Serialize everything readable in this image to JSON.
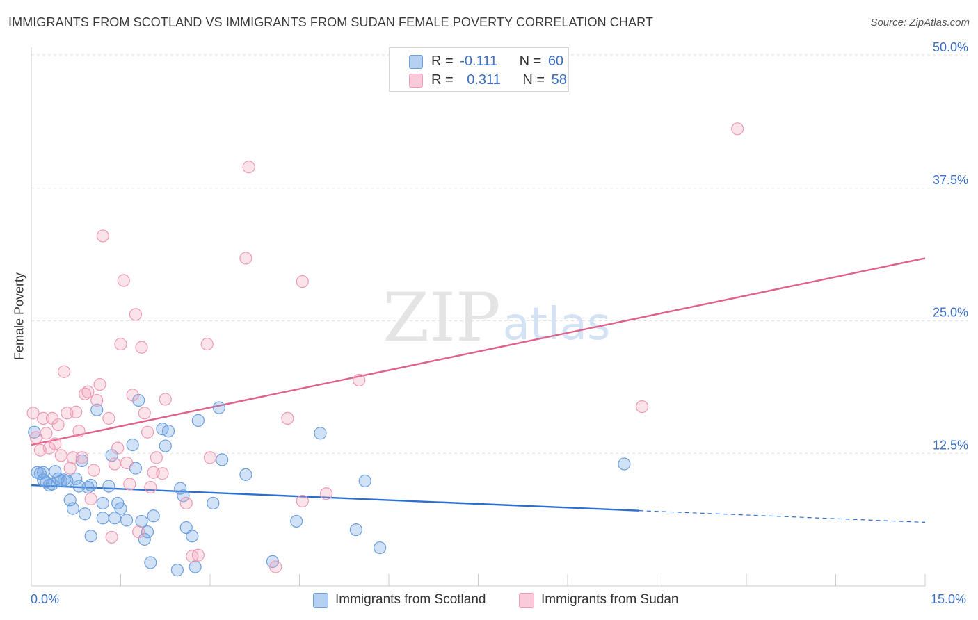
{
  "title": "IMMIGRANTS FROM SCOTLAND VS IMMIGRANTS FROM SUDAN FEMALE POVERTY CORRELATION CHART",
  "source": "Source: ZipAtlas.com",
  "watermark": {
    "zip": "ZIP",
    "atlas": "atlas"
  },
  "colors": {
    "scotland": "#6b9fe0",
    "scotland_line": "#2b6fd1",
    "sudan": "#f09ab5",
    "sudan_line": "#e0608c",
    "axis_text": "#3a6fc4"
  },
  "legend": {
    "scotland": {
      "r_label": "R =",
      "r_value": "-0.111",
      "n_label": "N =",
      "n_value": "60"
    },
    "sudan": {
      "r_label": "R =",
      "r_value": "0.311",
      "n_label": "N =",
      "n_value": "58"
    }
  },
  "bottom_legend": {
    "scotland": "Immigrants from Scotland",
    "sudan": "Immigrants from Sudan"
  },
  "x_axis": {
    "min_label": "0.0%",
    "max_label": "15.0%"
  },
  "chart_data": {
    "type": "scatter",
    "title": "IMMIGRANTS FROM SCOTLAND VS IMMIGRANTS FROM SUDAN FEMALE POVERTY CORRELATION CHART",
    "xlabel": "",
    "ylabel": "Female Poverty",
    "xlim": [
      0,
      15
    ],
    "ylim": [
      0,
      52
    ],
    "y_ticks": [
      12.5,
      25.0,
      37.5,
      50.0
    ],
    "y_tick_labels": [
      "12.5%",
      "25.0%",
      "37.5%",
      "50.0%"
    ],
    "grid": "horizontal dashed",
    "legend_position": "top-center",
    "series": [
      {
        "name": "Immigrants from Scotland",
        "points": [
          [
            0.05,
            14.5
          ],
          [
            0.1,
            10.7
          ],
          [
            0.2,
            10.7
          ],
          [
            0.2,
            10.0
          ],
          [
            0.25,
            9.8
          ],
          [
            0.3,
            9.5
          ],
          [
            0.35,
            9.6
          ],
          [
            0.4,
            10.8
          ],
          [
            0.45,
            10.1
          ],
          [
            0.5,
            9.9
          ],
          [
            0.55,
            10.0
          ],
          [
            0.6,
            9.9
          ],
          [
            0.65,
            8.1
          ],
          [
            0.7,
            7.3
          ],
          [
            0.75,
            10.1
          ],
          [
            0.8,
            9.4
          ],
          [
            0.85,
            11.8
          ],
          [
            0.9,
            6.8
          ],
          [
            0.95,
            9.3
          ],
          [
            1.0,
            4.7
          ],
          [
            1.1,
            16.6
          ],
          [
            1.2,
            7.8
          ],
          [
            1.2,
            6.4
          ],
          [
            1.3,
            9.4
          ],
          [
            1.35,
            12.3
          ],
          [
            1.4,
            6.4
          ],
          [
            1.45,
            7.8
          ],
          [
            1.5,
            7.3
          ],
          [
            1.6,
            6.2
          ],
          [
            1.7,
            13.3
          ],
          [
            1.75,
            11.1
          ],
          [
            1.8,
            17.5
          ],
          [
            1.85,
            6.1
          ],
          [
            1.9,
            4.4
          ],
          [
            1.95,
            5.1
          ],
          [
            2.0,
            2.2
          ],
          [
            2.05,
            6.6
          ],
          [
            2.2,
            14.8
          ],
          [
            2.25,
            13.2
          ],
          [
            2.3,
            14.6
          ],
          [
            2.45,
            1.5
          ],
          [
            2.5,
            9.2
          ],
          [
            2.55,
            8.5
          ],
          [
            2.6,
            5.5
          ],
          [
            2.7,
            4.7
          ],
          [
            2.75,
            1.8
          ],
          [
            2.8,
            15.6
          ],
          [
            3.05,
            7.8
          ],
          [
            3.15,
            16.8
          ],
          [
            3.2,
            11.9
          ],
          [
            3.6,
            10.5
          ],
          [
            4.05,
            2.3
          ],
          [
            4.45,
            6.1
          ],
          [
            4.85,
            14.4
          ],
          [
            5.45,
            5.3
          ],
          [
            5.6,
            9.9
          ],
          [
            5.85,
            3.6
          ],
          [
            9.95,
            11.5
          ],
          [
            0.15,
            10.6
          ],
          [
            1.0,
            9.5
          ]
        ]
      },
      {
        "name": "Immigrants from Sudan",
        "points": [
          [
            0.03,
            16.3
          ],
          [
            0.08,
            14.0
          ],
          [
            0.15,
            12.8
          ],
          [
            0.2,
            15.8
          ],
          [
            0.25,
            14.4
          ],
          [
            0.3,
            13.0
          ],
          [
            0.35,
            15.8
          ],
          [
            0.4,
            13.4
          ],
          [
            0.45,
            15.2
          ],
          [
            0.5,
            12.3
          ],
          [
            0.55,
            20.2
          ],
          [
            0.6,
            16.3
          ],
          [
            0.65,
            11.1
          ],
          [
            0.7,
            12.1
          ],
          [
            0.75,
            16.4
          ],
          [
            0.8,
            14.6
          ],
          [
            0.85,
            12.1
          ],
          [
            0.9,
            18.1
          ],
          [
            0.95,
            18.3
          ],
          [
            1.0,
            8.2
          ],
          [
            1.05,
            10.9
          ],
          [
            1.1,
            17.5
          ],
          [
            1.15,
            19.0
          ],
          [
            1.2,
            33.0
          ],
          [
            1.3,
            15.8
          ],
          [
            1.35,
            4.6
          ],
          [
            1.4,
            11.5
          ],
          [
            1.45,
            13.0
          ],
          [
            1.5,
            22.8
          ],
          [
            1.55,
            28.8
          ],
          [
            1.6,
            11.6
          ],
          [
            1.65,
            9.6
          ],
          [
            1.7,
            18.0
          ],
          [
            1.75,
            25.6
          ],
          [
            1.8,
            5.1
          ],
          [
            1.85,
            22.5
          ],
          [
            1.9,
            16.3
          ],
          [
            1.95,
            14.5
          ],
          [
            2.0,
            9.3
          ],
          [
            2.05,
            10.7
          ],
          [
            2.1,
            12.1
          ],
          [
            2.2,
            10.6
          ],
          [
            2.25,
            17.6
          ],
          [
            2.6,
            7.8
          ],
          [
            2.7,
            2.8
          ],
          [
            2.8,
            2.9
          ],
          [
            2.95,
            22.8
          ],
          [
            3.0,
            12.1
          ],
          [
            3.6,
            30.9
          ],
          [
            3.65,
            39.5
          ],
          [
            4.1,
            1.8
          ],
          [
            4.3,
            15.8
          ],
          [
            4.55,
            28.7
          ],
          [
            4.55,
            8.0
          ],
          [
            4.95,
            8.7
          ],
          [
            5.5,
            19.4
          ],
          [
            10.25,
            16.9
          ],
          [
            11.85,
            43.1
          ]
        ]
      }
    ],
    "trend_lines": [
      {
        "series": "Immigrants from Scotland",
        "from": [
          0,
          9.5
        ],
        "to": [
          10.2,
          7.1
        ],
        "dashed_to": [
          15,
          6.0
        ]
      },
      {
        "series": "Immigrants from Sudan",
        "from": [
          0,
          13.3
        ],
        "to": [
          15,
          30.9
        ]
      }
    ]
  }
}
